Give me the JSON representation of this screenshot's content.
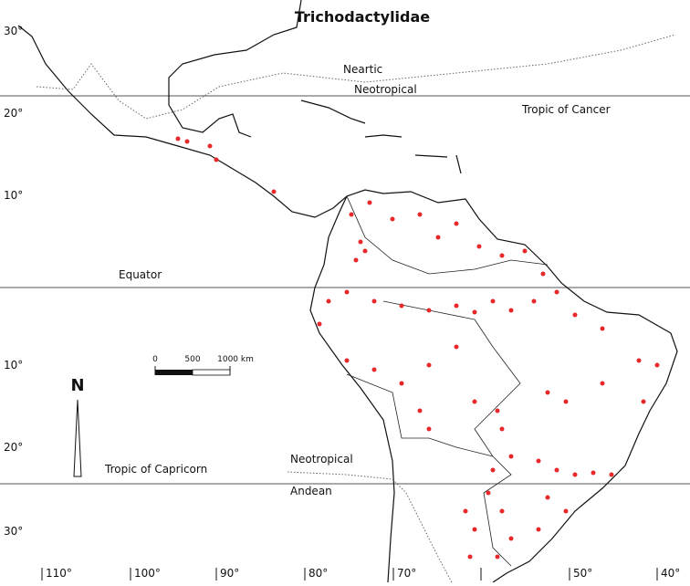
{
  "title": "Trichodactylidae",
  "regions": {
    "neartic": "Neartic",
    "neotropical_north": "Neotropical",
    "neotropical_south": "Neotropical",
    "andean": "Andean"
  },
  "lines": {
    "tropic_of_cancer": "Tropic of Cancer",
    "equator": "Equator",
    "tropic_of_capricorn": "Tropic of Capricorn"
  },
  "latitude_labels": [
    "30°",
    "20°",
    "10°",
    "10°",
    "20°",
    "30°"
  ],
  "longitude_labels": [
    "110°",
    "100°",
    "90°",
    "80°",
    "70°",
    "50°",
    "40°"
  ],
  "scale": [
    "0",
    "500",
    "1000 km"
  ],
  "north": "N"
}
